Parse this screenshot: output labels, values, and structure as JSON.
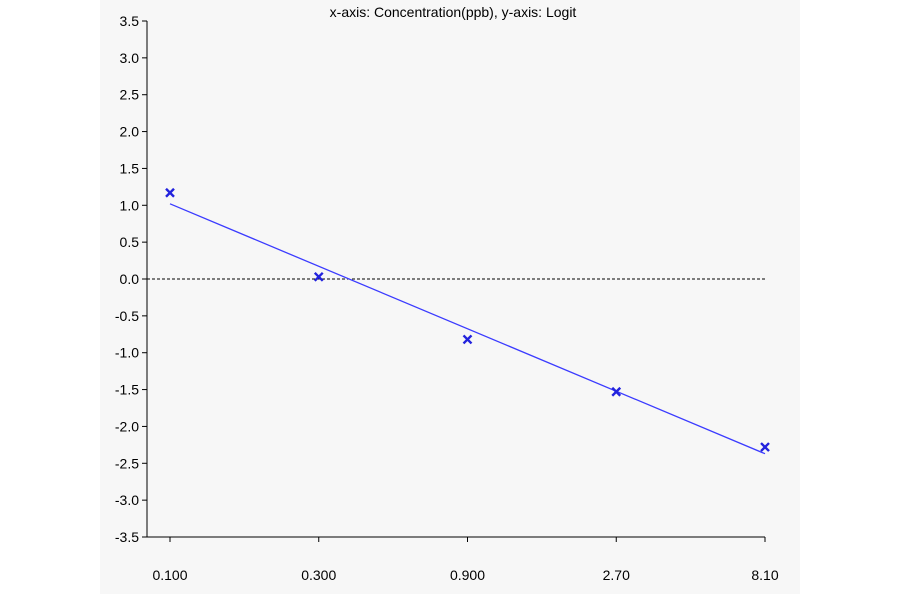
{
  "chart_data": {
    "type": "scatter",
    "title": "x-axis: Concentration(ppb), y-axis: Logit",
    "x_tick_labels": [
      "0.100",
      "0.300",
      "0.900",
      "2.70",
      "8.10"
    ],
    "y_tick_labels": [
      "3.5",
      "3.0",
      "2.5",
      "2.0",
      "1.5",
      "1.0",
      "0.5",
      "0.0",
      "-0.5",
      "-1.0",
      "-1.5",
      "-2.0",
      "-2.5",
      "-3.0",
      "-3.5"
    ],
    "x_scale": "log",
    "ylim": [
      -3.5,
      3.5
    ],
    "grid": false,
    "points": [
      {
        "x": 0.1,
        "y": 1.17
      },
      {
        "x": 0.3,
        "y": 0.03
      },
      {
        "x": 0.9,
        "y": -0.82
      },
      {
        "x": 2.7,
        "y": -1.53
      },
      {
        "x": 8.1,
        "y": -2.28
      }
    ],
    "fit_line": {
      "x": [
        0.1,
        8.1
      ],
      "y": [
        1.02,
        -2.37
      ]
    },
    "reference_line_y": 0.0,
    "colors": {
      "series": "#2222dd",
      "fit": "#3b3bff",
      "reference": "#000000"
    }
  }
}
